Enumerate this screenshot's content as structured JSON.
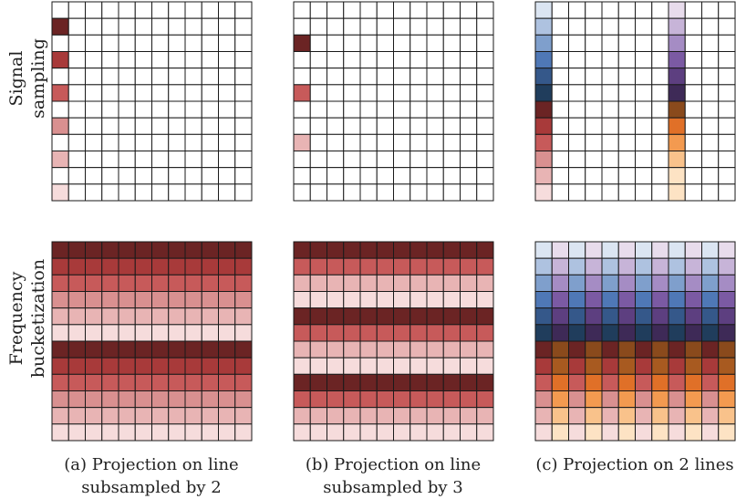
{
  "row_labels": [
    {
      "line1": "Signal",
      "line2": "sampling"
    },
    {
      "line1": "Frequency",
      "line2": "bucketization"
    }
  ],
  "captions": [
    {
      "line1": "(a) Projection on line",
      "line2": "subsampled by 2"
    },
    {
      "line1": "(b) Projection on line",
      "line2": "subsampled by 3"
    },
    {
      "line1": "(c) Projection on 2 lines",
      "line2": ""
    }
  ],
  "grid": {
    "rows": 12,
    "cols": 12
  },
  "colors": {
    "reds": [
      "#f6dcdc",
      "#e8b4b4",
      "#d99090",
      "#c75a5a",
      "#a83a3a",
      "#6b2424"
    ],
    "blues": [
      "#dbe5f2",
      "#aec2e0",
      "#7f9fcc",
      "#4f78b6",
      "#35588a",
      "#203d5c"
    ],
    "purples": [
      "#e8dcec",
      "#c7b4d8",
      "#a58cc4",
      "#7b5aa3",
      "#5d3f80",
      "#3e2a57"
    ],
    "oranges": [
      "#fde3c4",
      "#f9c28b",
      "#f39a50",
      "#e07028",
      "#a85a20",
      "#8a4a1c"
    ],
    "grid_line": "#1a1a1a"
  },
  "panels": {
    "a_sampling": {
      "col": 0,
      "cells": [
        [
          1,
          5
        ],
        [
          3,
          4
        ],
        [
          5,
          3
        ],
        [
          7,
          2
        ],
        [
          9,
          1
        ],
        [
          11,
          0
        ]
      ]
    },
    "b_sampling": {
      "col": 0,
      "cells": [
        [
          2,
          5
        ],
        [
          5,
          3
        ],
        [
          8,
          1
        ]
      ]
    },
    "c_sampling": {
      "col_a": 0,
      "col_b": 8,
      "cells_a": [
        [
          "b",
          0
        ],
        [
          "b",
          1
        ],
        [
          "b",
          2
        ],
        [
          "b",
          3
        ],
        [
          "b",
          4
        ],
        [
          "b",
          5
        ],
        [
          "r",
          5
        ],
        [
          "r",
          4
        ],
        [
          "r",
          3
        ],
        [
          "r",
          2
        ],
        [
          "r",
          1
        ],
        [
          "r",
          0
        ]
      ],
      "cells_b": [
        [
          "p",
          0
        ],
        [
          "p",
          1
        ],
        [
          "p",
          2
        ],
        [
          "p",
          3
        ],
        [
          "p",
          4
        ],
        [
          "p",
          5
        ],
        [
          "o",
          5
        ],
        [
          "o",
          3
        ],
        [
          "o",
          2
        ],
        [
          "o",
          1
        ],
        [
          "o",
          0
        ],
        [
          "o",
          0
        ]
      ]
    },
    "a_bucket": {
      "row_shades": [
        5,
        4,
        3,
        2,
        1,
        0,
        5,
        4,
        3,
        2,
        1,
        0
      ]
    },
    "b_bucket": {
      "row_shades": [
        5,
        3,
        1,
        0,
        5,
        3,
        1,
        0,
        5,
        3,
        1,
        0
      ]
    },
    "c_bucket": {
      "top_row_shades": [
        0,
        1,
        2,
        3,
        4,
        5
      ],
      "bottom_row_shades": [
        5,
        4,
        3,
        2,
        1,
        0
      ]
    }
  }
}
